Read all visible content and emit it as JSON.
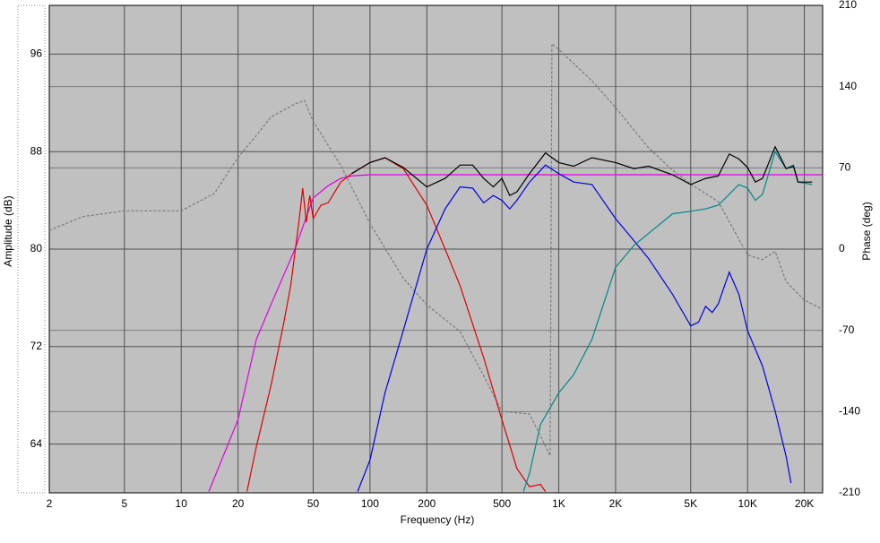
{
  "chart_data": {
    "type": "line",
    "x_label": "Frequency (Hz)",
    "y_label": "Amplitude (dB)",
    "y2_label": "Phase (deg)",
    "xscale": "log",
    "grid": true,
    "xlim": [
      2,
      25000
    ],
    "ylim": [
      60,
      100
    ],
    "y2lim": [
      -210,
      210
    ],
    "xticks": [
      2,
      5,
      10,
      20,
      50,
      100,
      200,
      500,
      {
        "value": 1000,
        "label": "1K"
      },
      {
        "value": 2000,
        "label": "2K"
      },
      {
        "value": 5000,
        "label": "5K"
      },
      {
        "value": 10000,
        "label": "10K"
      },
      {
        "value": 20000,
        "label": "20K"
      }
    ],
    "yticks": [
      64,
      72,
      80,
      88,
      96
    ],
    "y2ticks": [
      -210,
      -140,
      -70,
      0,
      70,
      140,
      210
    ],
    "series": [
      {
        "color": "#7a7a7a",
        "dash": true,
        "axis": "y2",
        "x": [
          2,
          3,
          5,
          10,
          15,
          20,
          25,
          30,
          40,
          45,
          50,
          70,
          100,
          150,
          200,
          300,
          400,
          500,
          700,
          900,
          920,
          1000,
          1500,
          2000,
          3000,
          4000,
          5000,
          7000,
          10000,
          12000,
          14000,
          16000,
          20000,
          25000
        ],
        "values": [
          16,
          28,
          33,
          33,
          48,
          79,
          98,
          114,
          125,
          128,
          110,
          72,
          22,
          -25,
          -48,
          -71,
          -109,
          -140,
          -142,
          -178,
          177,
          172,
          145,
          122,
          87,
          68,
          56,
          41,
          -5,
          -9,
          -2,
          -28,
          -44,
          -52
        ]
      },
      {
        "color": "#e000e0",
        "x": [
          14,
          20,
          25,
          30,
          40,
          50,
          60,
          70,
          80,
          100,
          1000,
          10000,
          25000
        ],
        "values": [
          60.1,
          66,
          72.6,
          75.5,
          80,
          84.2,
          85.2,
          85.8,
          86,
          86.1,
          86.1,
          86.1,
          86.1
        ]
      },
      {
        "color": "#e00000",
        "x": [
          22.3,
          25,
          30,
          35,
          38,
          42,
          44,
          46,
          48,
          50,
          55,
          60,
          70,
          80,
          100,
          120,
          150,
          200,
          250,
          300,
          400,
          500,
          600,
          700,
          800,
          850
        ],
        "values": [
          60.1,
          63.8,
          68.9,
          74,
          77,
          82.2,
          85,
          82.2,
          84.4,
          82.5,
          83.6,
          83.8,
          85.5,
          86.2,
          87.1,
          87.5,
          86.6,
          83.6,
          80,
          77,
          71.1,
          66,
          62,
          60.5,
          60.7,
          60.1
        ]
      },
      {
        "color": "#0000e0",
        "x": [
          86,
          100,
          120,
          150,
          200,
          250,
          300,
          350,
          400,
          450,
          500,
          550,
          600,
          700,
          850,
          1000,
          1200,
          1500,
          2000,
          2500,
          3000,
          4000,
          5000,
          5500,
          6000,
          6500,
          7000,
          8000,
          9000,
          10000,
          12000,
          14000,
          16000,
          17000
        ],
        "values": [
          60.1,
          62.7,
          68.2,
          73.3,
          80,
          83.3,
          85.1,
          85,
          83.8,
          84.4,
          84,
          83.3,
          84,
          85.5,
          86.9,
          86.2,
          85.5,
          85.3,
          82.5,
          80.7,
          79.2,
          76.3,
          73.7,
          74,
          75.3,
          74.8,
          75.5,
          78.1,
          76.3,
          73.3,
          70.4,
          66.7,
          63,
          60.8
        ]
      },
      {
        "color": "#008888",
        "x": [
          650,
          700,
          800,
          1000,
          1200,
          1500,
          2000,
          2500,
          3000,
          4000,
          5000,
          6000,
          7000,
          8000,
          9000,
          10000,
          11000,
          12000,
          14000,
          16000,
          17500,
          18500,
          22000
        ],
        "values": [
          60.1,
          61.6,
          65.6,
          68.2,
          69.7,
          72.6,
          78.5,
          80.3,
          81.3,
          82.9,
          83.1,
          83.3,
          83.6,
          84.5,
          85.3,
          85,
          84,
          84.5,
          88,
          86.6,
          86.9,
          85.5,
          85.3
        ]
      },
      {
        "color": "#000000",
        "x": [
          80,
          100,
          120,
          150,
          200,
          250,
          300,
          350,
          400,
          450,
          500,
          550,
          600,
          700,
          850,
          1000,
          1200,
          1500,
          2000,
          2500,
          3000,
          4000,
          5000,
          6000,
          7000,
          8000,
          9000,
          10000,
          11000,
          12000,
          14000,
          16000,
          17500,
          18500,
          22000
        ],
        "values": [
          86.2,
          87.1,
          87.5,
          86.7,
          85.1,
          85.8,
          86.9,
          86.9,
          85.8,
          85.1,
          85.8,
          84.4,
          84.7,
          86.2,
          87.9,
          87.1,
          86.8,
          87.5,
          87.1,
          86.6,
          86.8,
          86.1,
          85.3,
          85.8,
          86,
          87.8,
          87.4,
          86.7,
          85.5,
          85.8,
          88.4,
          86.6,
          86.8,
          85.5,
          85.5
        ]
      }
    ]
  }
}
